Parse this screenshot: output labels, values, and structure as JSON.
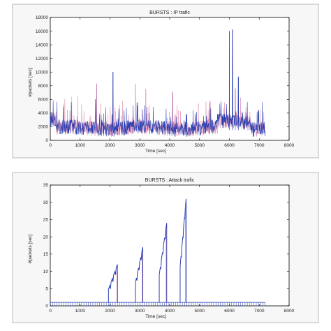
{
  "charts": [
    {
      "type": "line",
      "title": "BURSTS : IP trafic",
      "xlabel": "Time [sec]",
      "ylabel": "#packets [sec]",
      "xlim": [
        0,
        8000
      ],
      "ylim": [
        0,
        18000
      ],
      "xticks": [
        0,
        1000,
        2000,
        3000,
        4000,
        5000,
        6000,
        7000,
        8000
      ],
      "yticks": [
        0,
        2000,
        4000,
        6000,
        8000,
        10000,
        12000,
        14000,
        16000,
        18000
      ],
      "series": [
        {
          "color": "#e08ab0",
          "style": "magenta-noise",
          "x_range": [
            0,
            7200
          ]
        },
        {
          "color": "#2a3fb0",
          "style": "blue-noise",
          "x_range": [
            0,
            7200
          ]
        }
      ],
      "notable_peaks": [
        {
          "x": 2100,
          "y": 10000
        },
        {
          "x": 1550,
          "y": 8300
        },
        {
          "x": 2850,
          "y": 8300
        },
        {
          "x": 3200,
          "y": 7500
        },
        {
          "x": 4100,
          "y": 7100
        },
        {
          "x": 6000,
          "y": 16000
        },
        {
          "x": 6100,
          "y": 16200
        },
        {
          "x": 6200,
          "y": 7600
        },
        {
          "x": 6300,
          "y": 9300
        }
      ]
    },
    {
      "type": "line",
      "title": "BURSTS : Attack trafic",
      "xlabel": "Time [sec]",
      "ylabel": "#packets [sec]",
      "xlim": [
        0,
        8000
      ],
      "ylim": [
        0,
        35
      ],
      "xticks": [
        0,
        1000,
        2000,
        3000,
        4000,
        5000,
        6000,
        7000,
        8000
      ],
      "yticks": [
        0,
        5,
        10,
        15,
        20,
        25,
        30,
        35
      ],
      "baseline": {
        "y": 1,
        "x_range": [
          0,
          7200
        ]
      },
      "bursts": [
        {
          "x0": 1950,
          "x1": 2250,
          "peak": 12
        },
        {
          "x0": 2850,
          "x1": 3100,
          "peak": 17
        },
        {
          "x0": 3650,
          "x1": 3900,
          "peak": 24
        },
        {
          "x0": 4350,
          "x1": 4550,
          "peak": 31
        }
      ],
      "series": [
        {
          "color": "#2a3fb0"
        }
      ]
    }
  ]
}
